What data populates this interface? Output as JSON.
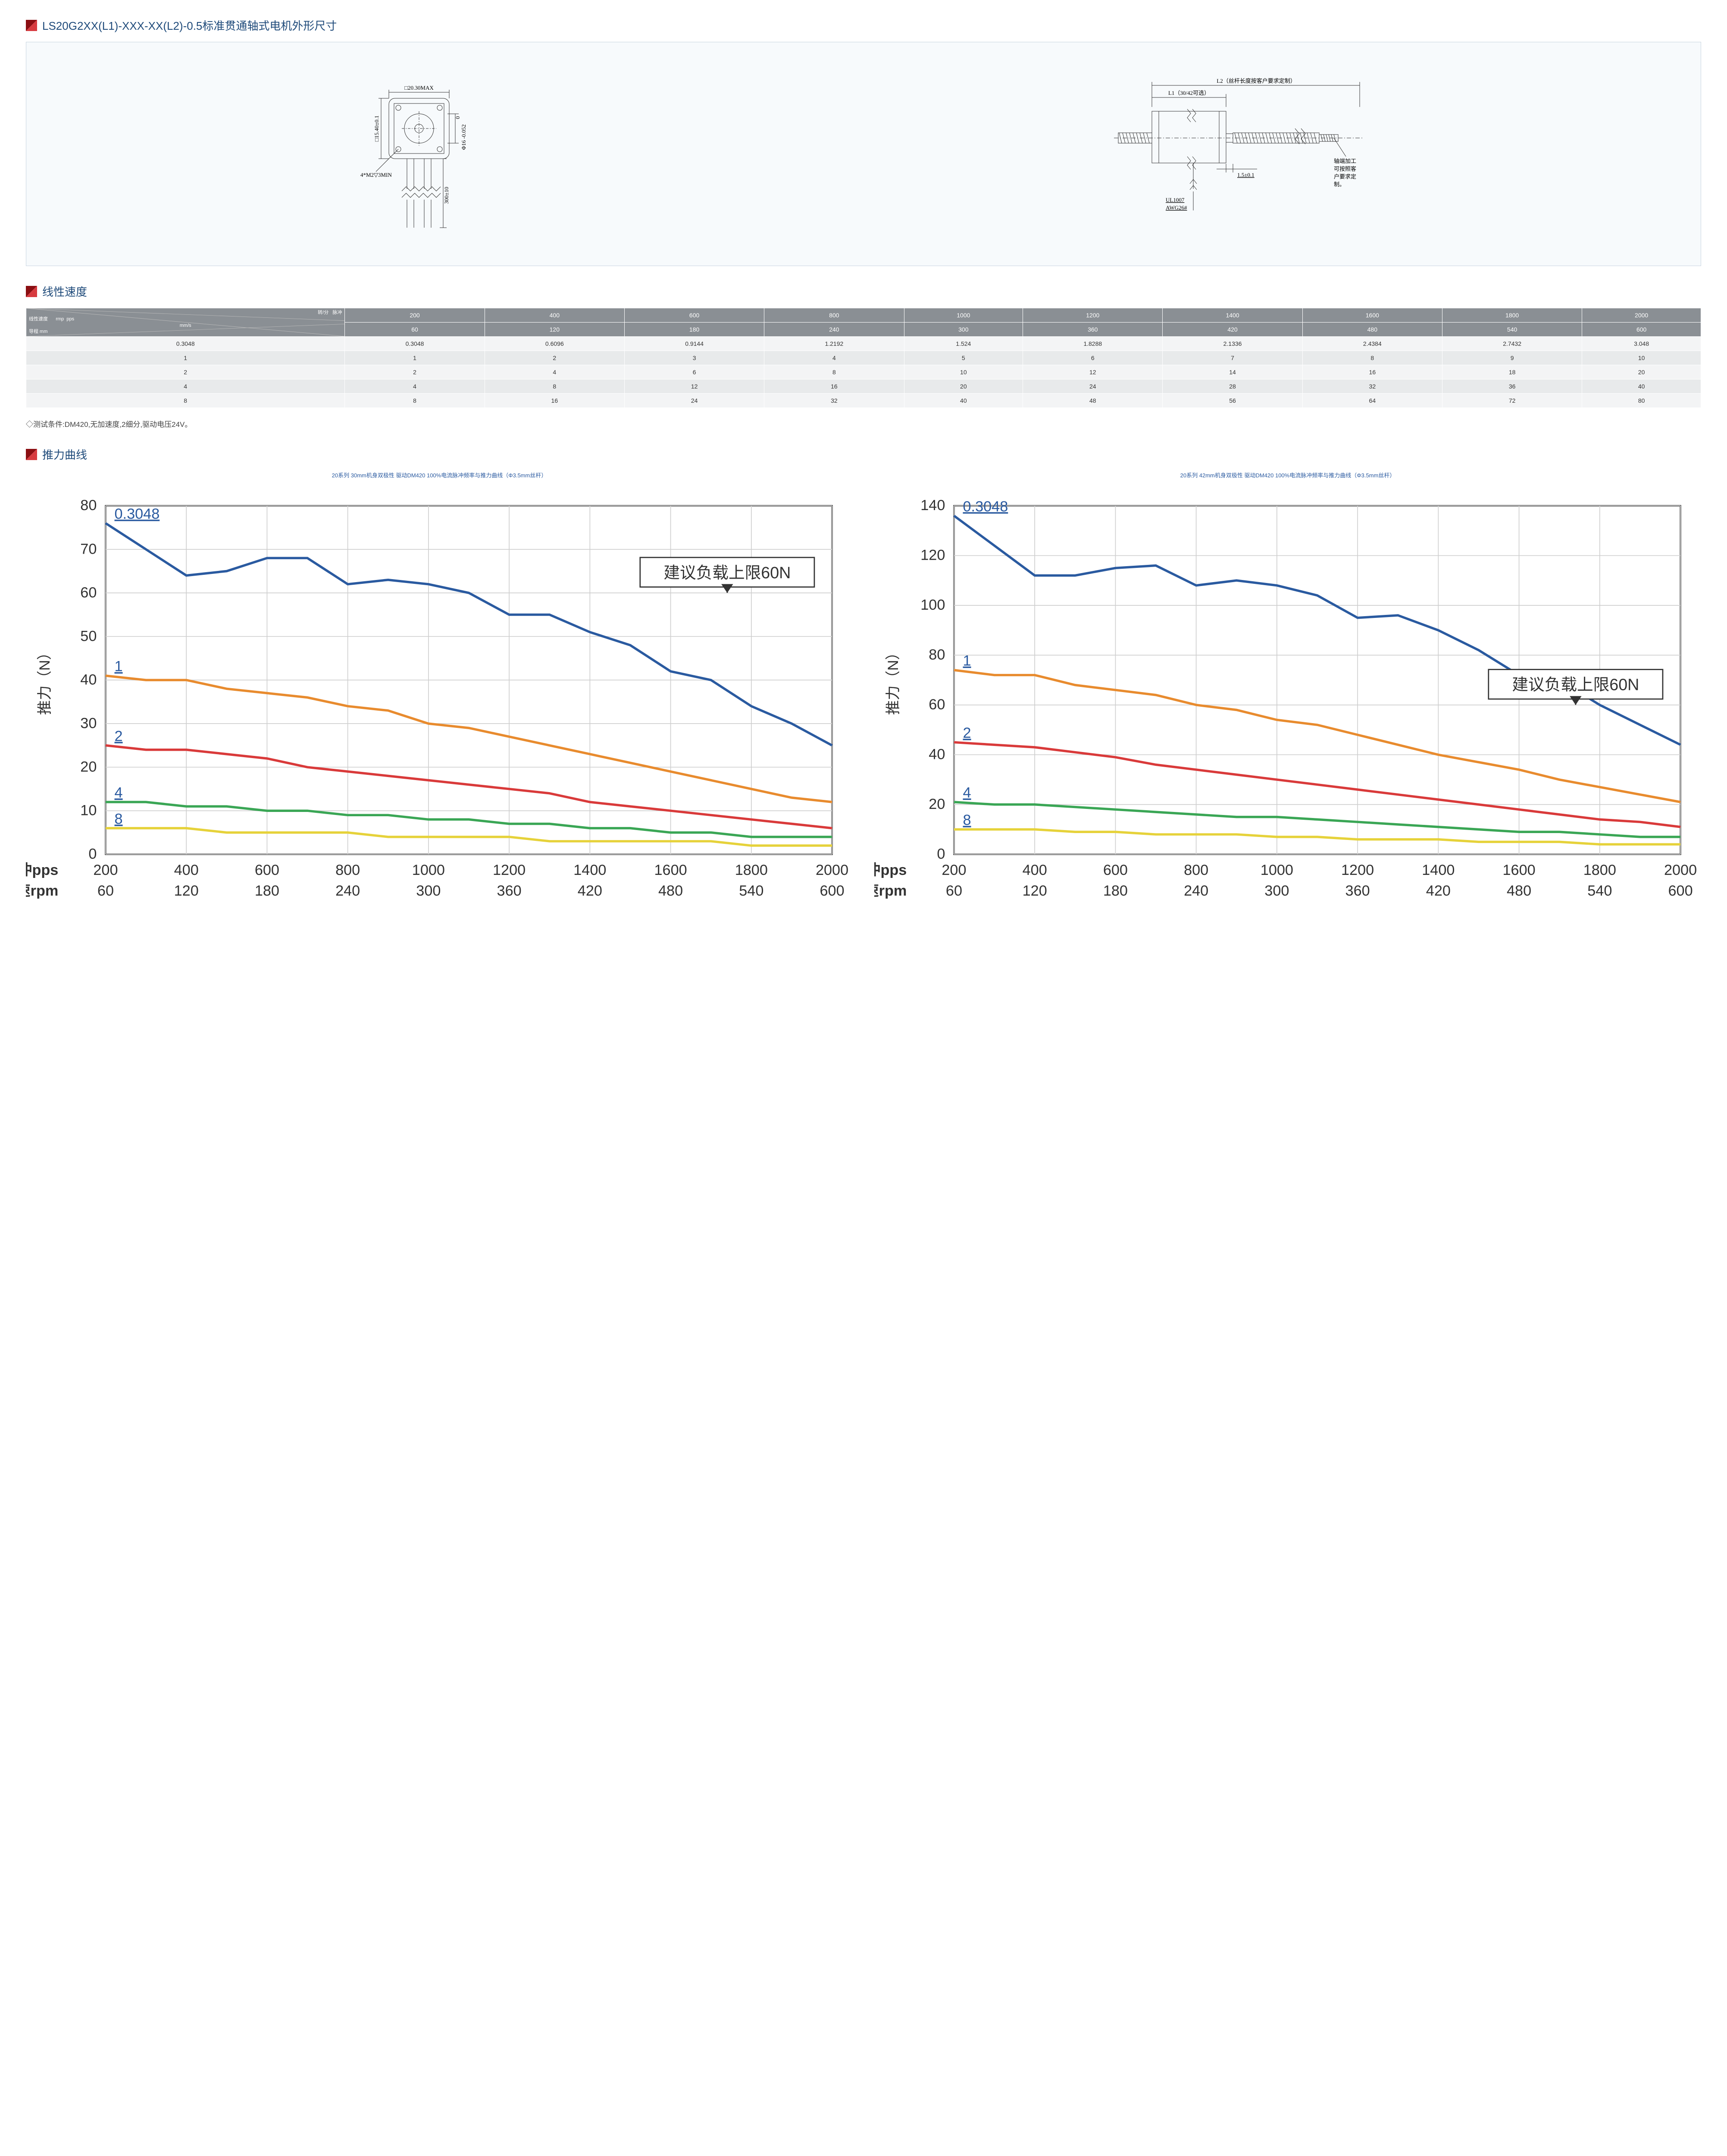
{
  "colors": {
    "heading": "#1e4a7a",
    "triangle_dark": "#8a0e12",
    "triangle_light": "#d73a3f",
    "diagram_border": "#c8d4e0",
    "diagram_bg": "#f7fafc",
    "table_header_bg": "#8a8f94",
    "table_header_fg": "#ffffff",
    "row_odd": "#f3f4f5",
    "row_even": "#e8eaeb",
    "chart_title": "#2a5aa0",
    "grid": "#cfcfcf",
    "axis": "#333333"
  },
  "section1": {
    "title": "LS20G2XX(L1)-XXX-XX(L2)-0.5标准贯通轴式电机外形尺寸",
    "diagram": {
      "front": {
        "top_dim": "□20.30MAX",
        "left_dim": "□15.40±0.1",
        "right_dim1": "0",
        "right_dim2": "Φ16 -0.052",
        "bottom_left": "4*M2▽3MIN",
        "wire_len": "300±10"
      },
      "side": {
        "top_l2": "L2（丝杆长度按客户要求定制）",
        "top_l1": "L1（30/42可选）",
        "shaft_gap": "1.5±0.1",
        "wire_label1": "UL1007",
        "wire_label2": "AWG26#",
        "note_lines": [
          "轴端加工",
          "可按照客",
          "户要求定",
          "制。"
        ]
      }
    }
  },
  "section2": {
    "title": "线性速度",
    "corner": {
      "l1": "转/分",
      "l1b": "脉冲",
      "l2a": "线性速度",
      "l2b": "rmp",
      "l2c": "pps",
      "l3a": "mm/s",
      "l4a": "导程 mm"
    },
    "header_top": [
      "200",
      "400",
      "600",
      "800",
      "1000",
      "1200",
      "1400",
      "1600",
      "1800",
      "2000"
    ],
    "header_bot": [
      "60",
      "120",
      "180",
      "240",
      "300",
      "360",
      "420",
      "480",
      "540",
      "600"
    ],
    "rows": [
      {
        "lead": "0.3048",
        "vals": [
          "0.3048",
          "0.6096",
          "0.9144",
          "1.2192",
          "1.524",
          "1.8288",
          "2.1336",
          "2.4384",
          "2.7432",
          "3.048"
        ]
      },
      {
        "lead": "1",
        "vals": [
          "1",
          "2",
          "3",
          "4",
          "5",
          "6",
          "7",
          "8",
          "9",
          "10"
        ]
      },
      {
        "lead": "2",
        "vals": [
          "2",
          "4",
          "6",
          "8",
          "10",
          "12",
          "14",
          "16",
          "18",
          "20"
        ]
      },
      {
        "lead": "4",
        "vals": [
          "4",
          "8",
          "12",
          "16",
          "20",
          "24",
          "28",
          "32",
          "36",
          "40"
        ]
      },
      {
        "lead": "8",
        "vals": [
          "8",
          "16",
          "24",
          "32",
          "40",
          "48",
          "56",
          "64",
          "72",
          "80"
        ]
      }
    ],
    "test_note": "◇测试条件:DM420,无加速度,2细分,驱动电压24V。"
  },
  "section3": {
    "title": "推力曲线",
    "common": {
      "x_ticks": [
        200,
        400,
        600,
        800,
        1000,
        1200,
        1400,
        1600,
        1800,
        2000
      ],
      "x_ticks_rpm": [
        60,
        120,
        180,
        240,
        300,
        360,
        420,
        480,
        540,
        600
      ],
      "x_label_pps": "脉冲pps",
      "x_label_rpm": "转速rpm",
      "y_label": "推力（N）",
      "annotation": "建议负载上限60N",
      "series_colors": {
        "0.3048": "#2a5aa0",
        "1": "#e88b2e",
        "2": "#d93a3a",
        "4": "#3aa655",
        "8": "#e6d23a"
      },
      "series_labels": [
        "0.3048",
        "1",
        "2",
        "4",
        "8"
      ]
    },
    "chart_left": {
      "title": "20系列 30mm机身双极性 驱动DM420 100%电流脉冲频率与推力曲线（Φ3.5mm丝杆）",
      "ylim": [
        0,
        80
      ],
      "ytick_step": 10,
      "series": {
        "0.3048": [
          [
            200,
            76
          ],
          [
            300,
            70
          ],
          [
            400,
            64
          ],
          [
            500,
            65
          ],
          [
            600,
            68
          ],
          [
            700,
            68
          ],
          [
            800,
            62
          ],
          [
            900,
            63
          ],
          [
            1000,
            62
          ],
          [
            1100,
            60
          ],
          [
            1200,
            55
          ],
          [
            1300,
            55
          ],
          [
            1400,
            51
          ],
          [
            1500,
            48
          ],
          [
            1600,
            42
          ],
          [
            1700,
            40
          ],
          [
            1800,
            34
          ],
          [
            1900,
            30
          ],
          [
            2000,
            25
          ]
        ],
        "1": [
          [
            200,
            41
          ],
          [
            300,
            40
          ],
          [
            400,
            40
          ],
          [
            500,
            38
          ],
          [
            600,
            37
          ],
          [
            700,
            36
          ],
          [
            800,
            34
          ],
          [
            900,
            33
          ],
          [
            1000,
            30
          ],
          [
            1100,
            29
          ],
          [
            1200,
            27
          ],
          [
            1300,
            25
          ],
          [
            1400,
            23
          ],
          [
            1500,
            21
          ],
          [
            1600,
            19
          ],
          [
            1700,
            17
          ],
          [
            1800,
            15
          ],
          [
            1900,
            13
          ],
          [
            2000,
            12
          ]
        ],
        "2": [
          [
            200,
            25
          ],
          [
            300,
            24
          ],
          [
            400,
            24
          ],
          [
            500,
            23
          ],
          [
            600,
            22
          ],
          [
            700,
            20
          ],
          [
            800,
            19
          ],
          [
            900,
            18
          ],
          [
            1000,
            17
          ],
          [
            1100,
            16
          ],
          [
            1200,
            15
          ],
          [
            1300,
            14
          ],
          [
            1400,
            12
          ],
          [
            1500,
            11
          ],
          [
            1600,
            10
          ],
          [
            1700,
            9
          ],
          [
            1800,
            8
          ],
          [
            1900,
            7
          ],
          [
            2000,
            6
          ]
        ],
        "4": [
          [
            200,
            12
          ],
          [
            300,
            12
          ],
          [
            400,
            11
          ],
          [
            500,
            11
          ],
          [
            600,
            10
          ],
          [
            700,
            10
          ],
          [
            800,
            9
          ],
          [
            900,
            9
          ],
          [
            1000,
            8
          ],
          [
            1100,
            8
          ],
          [
            1200,
            7
          ],
          [
            1300,
            7
          ],
          [
            1400,
            6
          ],
          [
            1500,
            6
          ],
          [
            1600,
            5
          ],
          [
            1700,
            5
          ],
          [
            1800,
            4
          ],
          [
            1900,
            4
          ],
          [
            2000,
            4
          ]
        ],
        "8": [
          [
            200,
            6
          ],
          [
            300,
            6
          ],
          [
            400,
            6
          ],
          [
            500,
            5
          ],
          [
            600,
            5
          ],
          [
            700,
            5
          ],
          [
            800,
            5
          ],
          [
            900,
            4
          ],
          [
            1000,
            4
          ],
          [
            1100,
            4
          ],
          [
            1200,
            4
          ],
          [
            1300,
            3
          ],
          [
            1400,
            3
          ],
          [
            1500,
            3
          ],
          [
            1600,
            3
          ],
          [
            1700,
            3
          ],
          [
            1800,
            2
          ],
          [
            1900,
            2
          ],
          [
            2000,
            2
          ]
        ]
      }
    },
    "chart_right": {
      "title": "20系列 42mm机身双极性 驱动DM420 100%电流脉冲频率与推力曲线（Φ3.5mm丝杆）",
      "ylim": [
        0,
        140
      ],
      "ytick_step": 20,
      "series": {
        "0.3048": [
          [
            200,
            136
          ],
          [
            300,
            124
          ],
          [
            400,
            112
          ],
          [
            500,
            112
          ],
          [
            600,
            115
          ],
          [
            700,
            116
          ],
          [
            800,
            108
          ],
          [
            900,
            110
          ],
          [
            1000,
            108
          ],
          [
            1100,
            104
          ],
          [
            1200,
            95
          ],
          [
            1300,
            96
          ],
          [
            1400,
            90
          ],
          [
            1500,
            82
          ],
          [
            1600,
            72
          ],
          [
            1700,
            70
          ],
          [
            1800,
            60
          ],
          [
            1900,
            52
          ],
          [
            2000,
            44
          ]
        ],
        "1": [
          [
            200,
            74
          ],
          [
            300,
            72
          ],
          [
            400,
            72
          ],
          [
            500,
            68
          ],
          [
            600,
            66
          ],
          [
            700,
            64
          ],
          [
            800,
            60
          ],
          [
            900,
            58
          ],
          [
            1000,
            54
          ],
          [
            1100,
            52
          ],
          [
            1200,
            48
          ],
          [
            1300,
            44
          ],
          [
            1400,
            40
          ],
          [
            1500,
            37
          ],
          [
            1600,
            34
          ],
          [
            1700,
            30
          ],
          [
            1800,
            27
          ],
          [
            1900,
            24
          ],
          [
            2000,
            21
          ]
        ],
        "2": [
          [
            200,
            45
          ],
          [
            300,
            44
          ],
          [
            400,
            43
          ],
          [
            500,
            41
          ],
          [
            600,
            39
          ],
          [
            700,
            36
          ],
          [
            800,
            34
          ],
          [
            900,
            32
          ],
          [
            1000,
            30
          ],
          [
            1100,
            28
          ],
          [
            1200,
            26
          ],
          [
            1300,
            24
          ],
          [
            1400,
            22
          ],
          [
            1500,
            20
          ],
          [
            1600,
            18
          ],
          [
            1700,
            16
          ],
          [
            1800,
            14
          ],
          [
            1900,
            13
          ],
          [
            2000,
            11
          ]
        ],
        "4": [
          [
            200,
            21
          ],
          [
            300,
            20
          ],
          [
            400,
            20
          ],
          [
            500,
            19
          ],
          [
            600,
            18
          ],
          [
            700,
            17
          ],
          [
            800,
            16
          ],
          [
            900,
            15
          ],
          [
            1000,
            15
          ],
          [
            1100,
            14
          ],
          [
            1200,
            13
          ],
          [
            1300,
            12
          ],
          [
            1400,
            11
          ],
          [
            1500,
            10
          ],
          [
            1600,
            9
          ],
          [
            1700,
            9
          ],
          [
            1800,
            8
          ],
          [
            1900,
            7
          ],
          [
            2000,
            7
          ]
        ],
        "8": [
          [
            200,
            10
          ],
          [
            300,
            10
          ],
          [
            400,
            10
          ],
          [
            500,
            9
          ],
          [
            600,
            9
          ],
          [
            700,
            8
          ],
          [
            800,
            8
          ],
          [
            900,
            8
          ],
          [
            1000,
            7
          ],
          [
            1100,
            7
          ],
          [
            1200,
            6
          ],
          [
            1300,
            6
          ],
          [
            1400,
            6
          ],
          [
            1500,
            5
          ],
          [
            1600,
            5
          ],
          [
            1700,
            5
          ],
          [
            1800,
            4
          ],
          [
            1900,
            4
          ],
          [
            2000,
            4
          ]
        ]
      }
    }
  }
}
